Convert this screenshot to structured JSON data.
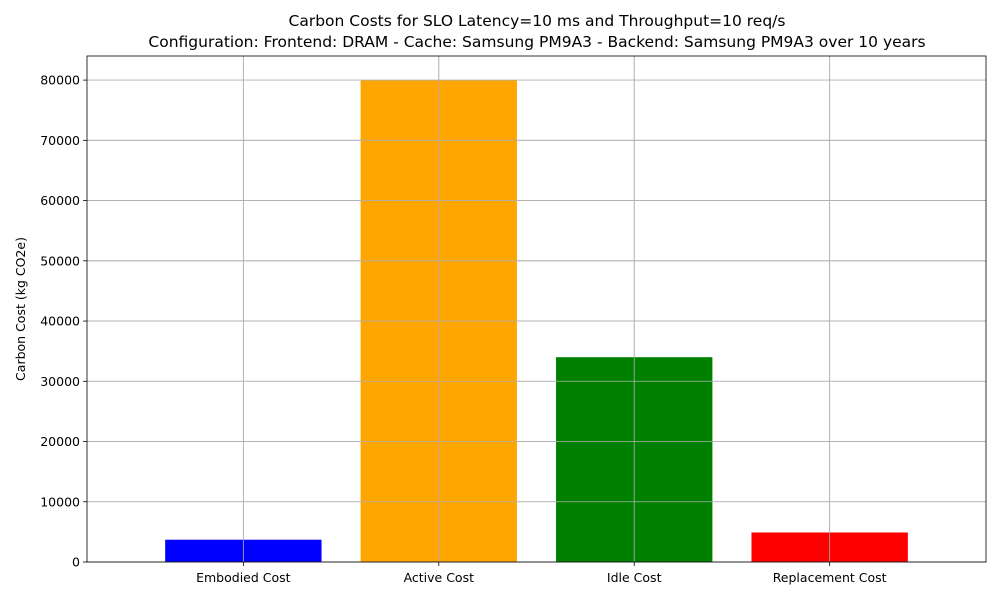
{
  "chart_data": {
    "type": "bar",
    "title_lines": [
      "Carbon Costs for SLO Latency=10 ms and Throughput=10 req/s",
      "Configuration: Frontend: DRAM - Cache: Samsung PM9A3 - Backend: Samsung PM9A3 over 10 years"
    ],
    "xlabel": "",
    "ylabel": "Carbon Cost (kg CO2e)",
    "categories": [
      "Embodied Cost",
      "Active Cost",
      "Idle Cost",
      "Replacement Cost"
    ],
    "values": [
      3700,
      80000,
      34000,
      4900
    ],
    "colors": [
      "#0000ff",
      "#ffa500",
      "#008000",
      "#ff0000"
    ],
    "ylim": [
      0,
      84000
    ],
    "yticks": [
      0,
      10000,
      20000,
      30000,
      40000,
      50000,
      60000,
      70000,
      80000
    ],
    "ytick_labels": [
      "0",
      "10000",
      "20000",
      "30000",
      "40000",
      "50000",
      "60000",
      "70000",
      "80000"
    ],
    "grid": true
  }
}
